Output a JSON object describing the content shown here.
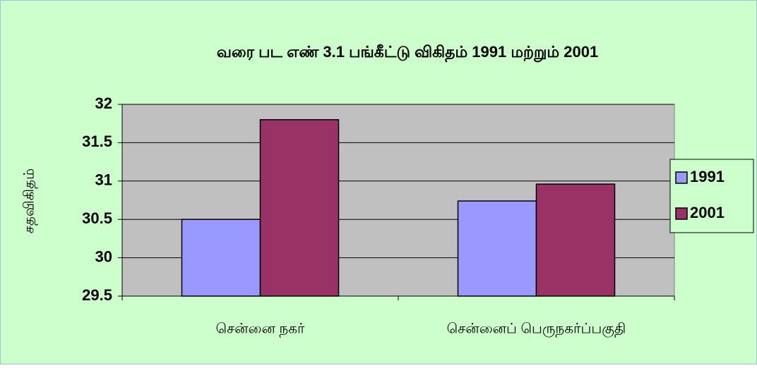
{
  "chart_data": {
    "type": "bar",
    "title": "வரை பட எண் 3.1  பங்கீட்டு விகிதம்  1991 மற்றும்  2001",
    "ylabel": "சதவிகிதம்",
    "categories": [
      "சென்னை நகர்",
      "சென்னைப் பெருநகர்ப்பகுதி"
    ],
    "series": [
      {
        "name": "1991",
        "color": "#9999ff",
        "values": [
          30.5,
          30.74
        ]
      },
      {
        "name": "2001",
        "color": "#993366",
        "values": [
          31.8,
          30.96
        ]
      }
    ],
    "ylim": [
      29.5,
      32
    ],
    "yticks": [
      29.5,
      30,
      30.5,
      31,
      31.5,
      32
    ],
    "grid": true,
    "legend": "right"
  }
}
